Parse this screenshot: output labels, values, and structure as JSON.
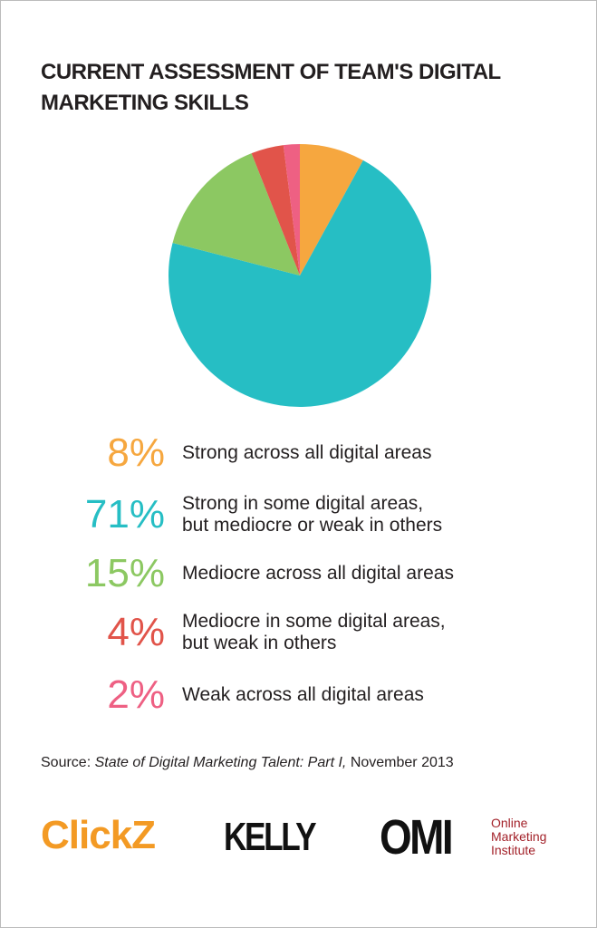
{
  "chart_data": {
    "type": "pie",
    "title": "CURRENT ASSESSMENT OF TEAM'S DIGITAL MARKETING SKILLS",
    "categories": [
      "Strong across all digital areas",
      "Strong in some digital areas,\nbut mediocre or weak in others",
      "Mediocre across all digital areas",
      "Mediocre in some digital areas,\nbut weak in others",
      "Weak across all digital areas"
    ],
    "values": [
      8,
      71,
      15,
      4,
      2
    ],
    "value_labels": [
      "8%",
      "71%",
      "15%",
      "4%",
      "2%"
    ],
    "colors": [
      "#f6a73f",
      "#26bec4",
      "#8cc862",
      "#e1544a",
      "#ee6083"
    ]
  },
  "source": {
    "label": "Source:",
    "publication": "State of Digital Marketing Talent: Part I,",
    "date": "November 2013"
  },
  "logos": {
    "clickz": "ClickZ",
    "kelly": "KELLY",
    "omi": "OMI",
    "omi_name": "Online\nMarketing\nInstitute"
  }
}
